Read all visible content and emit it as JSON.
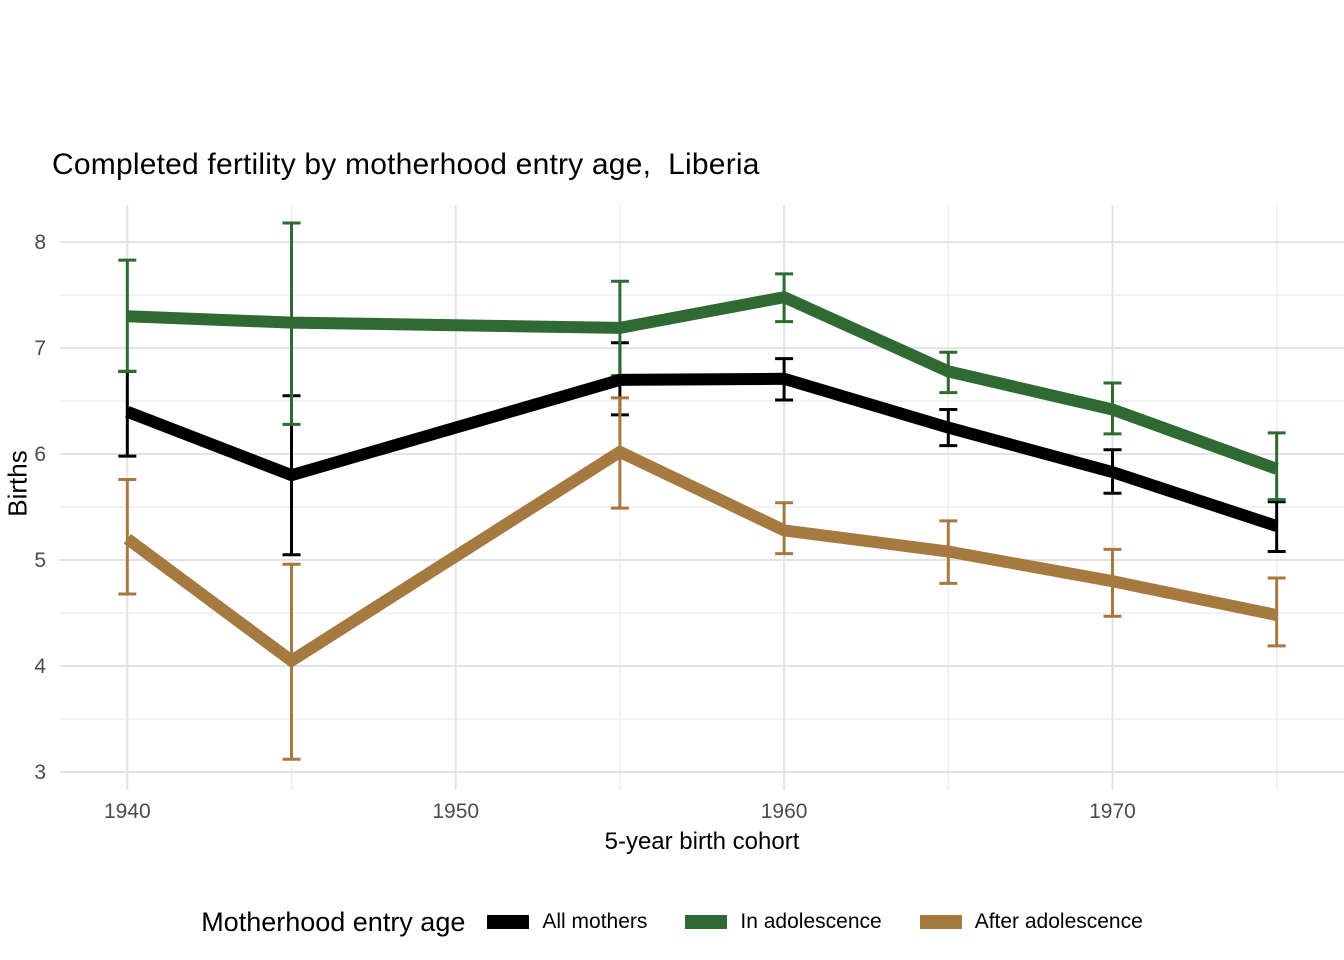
{
  "title": "Completed fertility by motherhood entry age,  Liberia",
  "colors": {
    "all_mothers": "#000000",
    "in_adolescence": "#2e6a31",
    "after_adolescence": "#a67941",
    "grid_major": "#e3e3e3",
    "grid_minor": "#efefef",
    "tick_label": "#4c4c4c",
    "background": "#ffffff"
  },
  "chart_data": {
    "type": "line",
    "title": "Completed fertility by motherhood entry age,  Liberia",
    "xlabel": "5-year birth cohort",
    "ylabel": "Births",
    "x": [
      1940,
      1945,
      1955,
      1960,
      1965,
      1970,
      1975
    ],
    "x_major_ticks": [
      1940,
      1950,
      1960,
      1970
    ],
    "x_minor_ticks": [
      1935,
      1945,
      1955,
      1965,
      1975
    ],
    "y_major_ticks": [
      3,
      4,
      5,
      6,
      7,
      8
    ],
    "y_minor_ticks": [
      3.5,
      4.5,
      5.5,
      6.5,
      7.5
    ],
    "xlim": [
      1937.95,
      1977.05
    ],
    "ylim": [
      2.83,
      8.35
    ],
    "grid": "major+minor",
    "error_bars": true,
    "legend_position": "bottom",
    "legend_title": "Motherhood entry age",
    "series": [
      {
        "name": "All mothers",
        "color": "#000000",
        "values": [
          6.4,
          5.8,
          6.7,
          6.71,
          6.25,
          5.83,
          5.32
        ],
        "ci_low": [
          5.98,
          5.05,
          6.37,
          6.51,
          6.08,
          5.63,
          5.08
        ],
        "ci_high": [
          6.78,
          6.55,
          7.05,
          6.9,
          6.42,
          6.04,
          5.55
        ]
      },
      {
        "name": "In adolescence",
        "color": "#2e6a31",
        "values": [
          7.3,
          7.24,
          7.19,
          7.48,
          6.78,
          6.42,
          5.86
        ],
        "ci_low": [
          6.78,
          6.28,
          6.74,
          7.25,
          6.58,
          6.19,
          5.57
        ],
        "ci_high": [
          7.83,
          8.18,
          7.63,
          7.7,
          6.96,
          6.67,
          6.2
        ]
      },
      {
        "name": "After adolescence",
        "color": "#a67941",
        "values": [
          5.2,
          4.05,
          6.02,
          5.28,
          5.08,
          4.8,
          4.48
        ],
        "ci_low": [
          4.68,
          3.12,
          5.49,
          5.06,
          4.78,
          4.47,
          4.19
        ],
        "ci_high": [
          5.76,
          4.96,
          6.53,
          5.54,
          5.37,
          5.1,
          4.83
        ]
      }
    ]
  }
}
